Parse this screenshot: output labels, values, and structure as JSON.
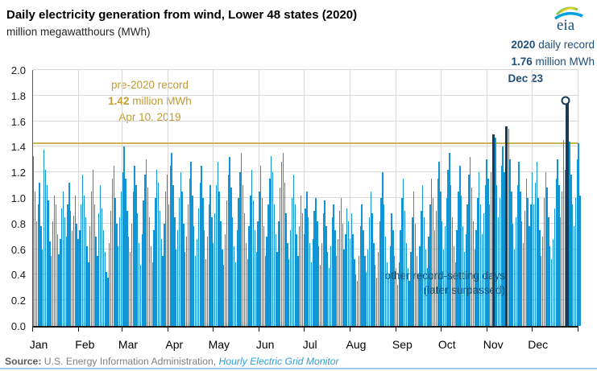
{
  "header": {
    "title": "Daily electricity generation from wind, Lower 48 states (2020)",
    "subtitle": "million megawatthours (MWh)",
    "logo_text": "eia"
  },
  "annotations": {
    "record2020": {
      "year": "2020",
      "label": " daily record",
      "value": "1.76",
      "unit": " million MWh",
      "date": "Dec 23"
    },
    "pre2020": {
      "line1": "pre-2020 record",
      "value": "1.42",
      "unit": " million MWh",
      "date": "Apr 10, 2019"
    },
    "other_records": {
      "line1": "other record-setting days",
      "line2": "(later surpassed)"
    }
  },
  "source": {
    "prefix": "Source:",
    "text": " U.S. Energy Information Administration, ",
    "link": "Hourly Electric Grid Monitor"
  },
  "colors": {
    "bar": "#1295d5",
    "record_bar": "#1b3a54",
    "gold_line": "#cfb456",
    "gold_text": "#bf9b30",
    "navy_text": "#1f4e79",
    "grid": "#d9d9d9",
    "link_blue": "#2e9fd6",
    "rule_blue": "#a5c9e6"
  },
  "chart_data": {
    "type": "bar",
    "title": "Daily electricity generation from wind, Lower 48 states (2020)",
    "ylabel": "million megawatthours (MWh)",
    "xlabel": "",
    "ylim": [
      0,
      2.0
    ],
    "grid": true,
    "legend_position": "none",
    "y_ticks": [
      "2.0",
      "1.8",
      "1.6",
      "1.4",
      "1.2",
      "1.0",
      "0.8",
      "0.6",
      "0.4",
      "0.2",
      "0.0"
    ],
    "categories": [
      "Jan",
      "Feb",
      "Mar",
      "Apr",
      "May",
      "Jun",
      "Jul",
      "Aug",
      "Sep",
      "Oct",
      "Nov",
      "Dec"
    ],
    "month_start_indices": [
      0,
      31,
      60,
      91,
      121,
      152,
      182,
      213,
      244,
      274,
      305,
      335
    ],
    "total_days": 366,
    "reference_line": {
      "value": 1.42,
      "label": "pre-2020 record 1.42 million MWh Apr 10, 2019"
    },
    "record_indices": [
      309,
      317,
      357
    ],
    "final_record": {
      "index": 357,
      "value": 1.76,
      "date": "Dec 23"
    },
    "values": [
      1.33,
      1.05,
      0.82,
      0.95,
      1.12,
      0.78,
      0.6,
      1.38,
      1.22,
      1.1,
      0.98,
      0.66,
      0.55,
      0.82,
      1.02,
      0.95,
      0.72,
      0.56,
      0.68,
      0.92,
      1.05,
      0.85,
      0.7,
      0.95,
      1.12,
      0.9,
      0.74,
      0.86,
      1.02,
      0.8,
      0.68,
      0.75,
      0.95,
      1.18,
      1.02,
      0.85,
      0.62,
      0.5,
      0.78,
      1.05,
      1.22,
      0.95,
      0.7,
      0.55,
      0.88,
      1.1,
      0.92,
      0.75,
      0.58,
      0.42,
      0.38,
      0.65,
      0.9,
      1.15,
      1.25,
      1.0,
      0.8,
      0.62,
      0.85,
      1.05,
      1.2,
      1.4,
      1.15,
      0.9,
      0.7,
      0.58,
      0.8,
      1.05,
      1.25,
      1.1,
      0.88,
      0.65,
      0.48,
      0.72,
      0.98,
      1.18,
      1.3,
      1.08,
      0.85,
      0.62,
      0.5,
      0.75,
      1.0,
      1.22,
      1.12,
      0.9,
      0.68,
      0.55,
      0.8,
      1.05,
      1.18,
      0.95,
      1.25,
      1.35,
      1.1,
      0.85,
      0.6,
      0.75,
      1.0,
      1.2,
      1.05,
      0.8,
      0.58,
      0.7,
      0.95,
      1.15,
      1.28,
      1.02,
      0.78,
      0.55,
      0.68,
      0.92,
      1.12,
      1.25,
      1.0,
      0.75,
      0.52,
      0.7,
      0.95,
      1.1,
      0.85,
      0.65,
      0.88,
      1.1,
      1.28,
      1.05,
      0.82,
      0.6,
      0.48,
      0.72,
      0.98,
      1.18,
      1.32,
      1.08,
      0.85,
      0.62,
      0.5,
      0.75,
      1.0,
      1.2,
      1.35,
      1.1,
      0.88,
      0.65,
      0.52,
      0.78,
      1.02,
      1.22,
      0.98,
      0.75,
      0.58,
      0.82,
      1.05,
      1.25,
      1.0,
      0.78,
      0.55,
      0.7,
      0.95,
      1.15,
      1.33,
      1.2,
      0.95,
      0.72,
      0.58,
      0.82,
      1.08,
      1.28,
      1.35,
      1.12,
      0.88,
      0.65,
      0.52,
      0.75,
      1.0,
      1.18,
      0.95,
      0.72,
      0.55,
      0.78,
      1.02,
      0.88,
      0.72,
      0.92,
      1.05,
      0.85,
      0.65,
      0.5,
      0.68,
      0.9,
      1.0,
      0.82,
      0.62,
      0.48,
      0.65,
      0.88,
      0.98,
      0.78,
      0.58,
      0.45,
      0.62,
      0.85,
      0.95,
      0.75,
      0.55,
      0.68,
      0.9,
      1.0,
      0.8,
      0.6,
      0.72,
      0.92,
      0.82,
      0.68,
      0.88,
      0.72,
      0.52,
      0.4,
      0.35,
      0.55,
      0.78,
      0.95,
      0.75,
      0.55,
      0.42,
      0.6,
      0.85,
      1.05,
      0.88,
      0.65,
      0.48,
      0.38,
      0.58,
      0.82,
      1.0,
      1.2,
      0.95,
      0.7,
      0.5,
      0.4,
      0.62,
      0.88,
      0.75,
      0.55,
      0.45,
      0.32,
      0.5,
      0.75,
      1.0,
      1.15,
      0.9,
      0.65,
      0.45,
      0.35,
      0.58,
      0.85,
      1.05,
      0.8,
      0.55,
      0.4,
      0.62,
      0.9,
      1.1,
      0.85,
      0.6,
      0.45,
      0.7,
      0.95,
      1.15,
      1.0,
      0.75,
      0.9,
      1.15,
      1.28,
      1.05,
      0.82,
      0.6,
      0.78,
      1.0,
      1.22,
      1.35,
      1.1,
      0.85,
      0.62,
      0.5,
      0.75,
      1.05,
      1.25,
      1.02,
      0.78,
      0.58,
      0.72,
      0.95,
      1.18,
      1.32,
      1.08,
      0.82,
      0.6,
      0.75,
      1.0,
      1.2,
      0.95,
      0.72,
      0.88,
      1.1,
      1.3,
      1.15,
      0.95,
      1.2,
      1.5,
      1.47,
      1.1,
      0.85,
      1.0,
      1.25,
      1.4,
      1.2,
      1.56,
      1.54,
      1.3,
      1.05,
      0.8,
      0.6,
      0.85,
      1.1,
      1.28,
      1.05,
      0.82,
      0.65,
      0.9,
      1.15,
      1.0,
      0.78,
      0.95,
      1.2,
      0.95,
      1.12,
      1.28,
      1.0,
      0.75,
      0.55,
      0.7,
      1.0,
      1.2,
      1.08,
      0.85,
      0.62,
      0.52,
      0.68,
      0.92,
      1.15,
      1.3,
      1.1,
      0.85,
      1.05,
      1.45,
      1.22,
      1.76,
      1.44,
      1.18,
      0.95,
      0.78,
      1.0,
      1.3,
      1.43,
      1.02
    ]
  }
}
